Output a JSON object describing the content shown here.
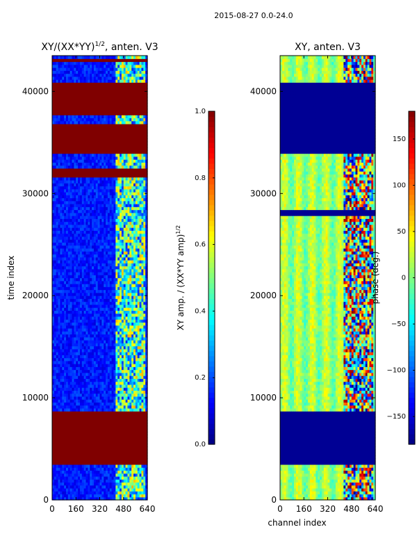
{
  "figure_title": "2015-08-27 0.0-24.0",
  "chart_data": [
    {
      "type": "heatmap",
      "id": "left",
      "title_main": "XY/(XX*YY)",
      "title_exp": "1/2",
      "title_suffix": ", anten. V3",
      "xlabel": "",
      "ylabel": "time index",
      "xlim": [
        0,
        640
      ],
      "ylim": [
        0,
        43500
      ],
      "x_ticks": [
        0,
        160,
        320,
        480,
        640
      ],
      "y_ticks": [
        0,
        10000,
        20000,
        30000,
        40000
      ],
      "y_tick_labels": [
        "0",
        "10000",
        "20000",
        "30000",
        "40000"
      ],
      "colorbar": {
        "label_main": "XY amp. / (XX*YY amp)",
        "label_exp": "1/2",
        "range": [
          0.0,
          1.0
        ],
        "ticks": [
          0.0,
          0.2,
          0.4,
          0.6,
          0.8,
          1.0
        ],
        "tick_labels": [
          "0.0",
          "0.2",
          "0.4",
          "0.6",
          "0.8",
          "1.0"
        ],
        "colormap": "jet"
      },
      "saturated_time_bands": [
        [
          3500,
          8700
        ],
        [
          31700,
          32600
        ],
        [
          33800,
          36800
        ],
        [
          37800,
          41000
        ],
        [
          42800,
          43100
        ]
      ],
      "background_level": 0.15,
      "active_channels": [
        430,
        620
      ]
    },
    {
      "type": "heatmap",
      "id": "right",
      "title_main": "XY, anten. V3",
      "title_exp": "",
      "title_suffix": "",
      "xlabel": "channel index",
      "ylabel": "",
      "xlim": [
        0,
        640
      ],
      "ylim": [
        0,
        43500
      ],
      "x_ticks": [
        0,
        160,
        320,
        480,
        640
      ],
      "y_ticks": [
        0,
        10000,
        20000,
        30000,
        40000
      ],
      "y_tick_labels": [
        "0",
        "10000",
        "20000",
        "30000",
        "40000"
      ],
      "colorbar": {
        "label_main": "phase (deg.)",
        "label_exp": "",
        "range": [
          -180,
          180
        ],
        "ticks": [
          -150,
          -100,
          -50,
          0,
          50,
          100,
          150
        ],
        "tick_labels": [
          "−150",
          "−100",
          "−50",
          "0",
          "50",
          "100",
          "150"
        ],
        "colormap": "jet"
      },
      "flat_time_bands": [
        [
          3500,
          8700
        ],
        [
          27900,
          28500
        ],
        [
          33800,
          41000
        ]
      ],
      "background_phase": 10,
      "active_channels": [
        430,
        620
      ]
    }
  ]
}
